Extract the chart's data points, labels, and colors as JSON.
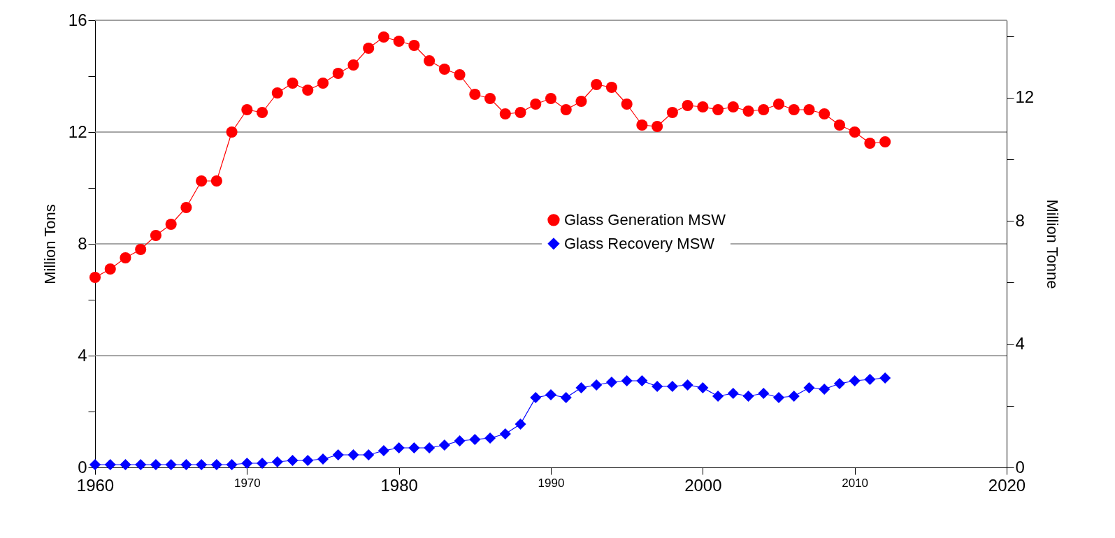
{
  "chart_data": {
    "type": "line",
    "ylabel": "Million Tons",
    "y2label": "Million Tonne",
    "x": [
      1960,
      1961,
      1962,
      1963,
      1964,
      1965,
      1966,
      1967,
      1968,
      1969,
      1970,
      1971,
      1972,
      1973,
      1974,
      1975,
      1976,
      1977,
      1978,
      1979,
      1980,
      1981,
      1982,
      1983,
      1984,
      1985,
      1986,
      1987,
      1988,
      1989,
      1990,
      1991,
      1992,
      1993,
      1994,
      1995,
      1996,
      1997,
      1998,
      1999,
      2000,
      2001,
      2002,
      2003,
      2004,
      2005,
      2006,
      2007,
      2008,
      2009,
      2010,
      2011,
      2012
    ],
    "series": [
      {
        "name": "Glass Generation MSW",
        "color": "#ff0000",
        "marker": "circle",
        "values": [
          6.8,
          7.1,
          7.5,
          7.8,
          8.3,
          8.7,
          9.3,
          10.25,
          10.25,
          12.0,
          12.8,
          12.7,
          13.4,
          13.75,
          13.5,
          13.75,
          14.1,
          14.4,
          15.0,
          15.4,
          15.25,
          15.1,
          14.55,
          14.25,
          14.05,
          13.35,
          13.2,
          12.65,
          12.7,
          13.0,
          13.2,
          12.8,
          13.1,
          13.7,
          13.6,
          13.0,
          12.25,
          12.2,
          12.7,
          12.95,
          12.9,
          12.8,
          12.9,
          12.75,
          12.8,
          13.0,
          12.8,
          12.8,
          12.65,
          12.25,
          12.0,
          11.6,
          11.65
        ]
      },
      {
        "name": "Glass Recovery MSW",
        "color": "#0000ff",
        "marker": "diamond",
        "values": [
          0.1,
          0.1,
          0.1,
          0.1,
          0.1,
          0.1,
          0.1,
          0.1,
          0.1,
          0.1,
          0.15,
          0.15,
          0.2,
          0.25,
          0.25,
          0.3,
          0.45,
          0.45,
          0.45,
          0.6,
          0.7,
          0.7,
          0.7,
          0.8,
          0.95,
          1.0,
          1.05,
          1.2,
          1.55,
          2.5,
          2.6,
          2.5,
          2.85,
          2.95,
          3.05,
          3.1,
          3.1,
          2.9,
          2.9,
          2.95,
          2.85,
          2.55,
          2.65,
          2.55,
          2.65,
          2.5,
          2.55,
          2.85,
          2.8,
          3.0,
          3.1,
          3.15,
          3.2
        ]
      }
    ],
    "xlim": [
      1960,
      2020
    ],
    "xticks": [
      1960,
      1970,
      1980,
      1990,
      2000,
      2010,
      2020
    ],
    "ylim": [
      0,
      16
    ],
    "yticks": [
      0,
      {
        "value": 2,
        "label": null
      },
      4,
      {
        "value": 6,
        "label": null
      },
      8,
      {
        "value": 10,
        "label": null
      },
      12,
      {
        "value": 14,
        "label": null
      },
      16
    ],
    "y2lim": [
      0,
      14.515
    ],
    "y2ticks": [
      0,
      {
        "value": 2,
        "label": null
      },
      4,
      {
        "value": 6,
        "label": null
      },
      8,
      {
        "value": 10,
        "label": null
      },
      12,
      {
        "value": 14,
        "label": null
      }
    ],
    "grid": "y",
    "legend": "right",
    "line_style": "solid"
  }
}
